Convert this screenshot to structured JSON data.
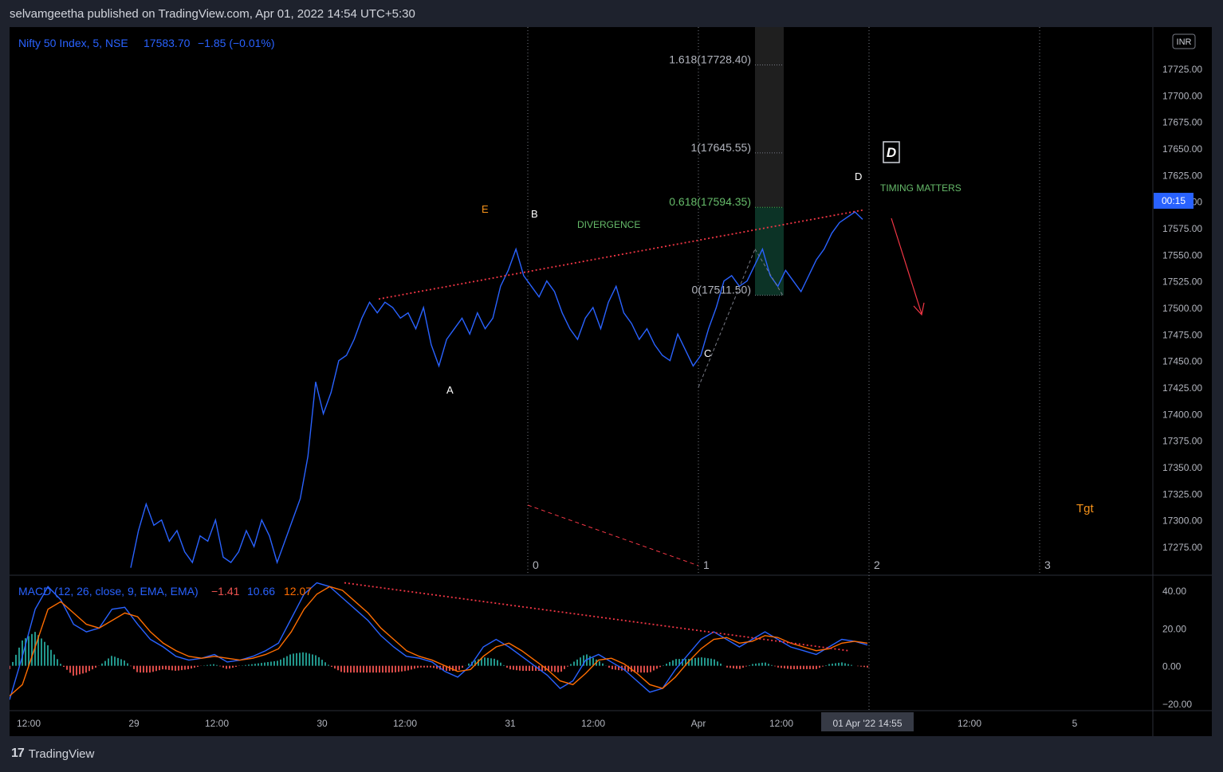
{
  "header": {
    "publish_line": "selvamgeetha published on TradingView.com, Apr 01, 2022 14:54 UTC+5:30"
  },
  "footer": {
    "brand": "TradingView",
    "logo_icon": "tradingview-logo-icon"
  },
  "colors": {
    "background": "#000000",
    "frame": "#1e222d",
    "price_line": "#2962ff",
    "accent_blue": "#2962ff",
    "macd_line": "#2962ff",
    "signal_line": "#ff6d00",
    "hist_pos": "#26a69a",
    "hist_neg": "#ef5350",
    "annotation_red": "#f23645",
    "fib_green": "#4caf50",
    "fib_green_text": "#66bb6a",
    "orange_text": "#f7931a"
  },
  "legend": {
    "symbol": "Nifty 50 Index, 5, NSE",
    "price": "17583.70",
    "change": "−1.85 (−0.01%)"
  },
  "price_axis": {
    "currency": "INR",
    "ticks": [
      "17725.00",
      "17700.00",
      "17675.00",
      "17650.00",
      "17625.00",
      "17600.00",
      "17575.00",
      "17550.00",
      "17525.00",
      "17500.00",
      "17475.00",
      "17450.00",
      "17425.00",
      "17400.00",
      "17375.00",
      "17350.00",
      "17325.00",
      "17300.00",
      "17275.00"
    ],
    "countdown": "00:15"
  },
  "macd_axis": {
    "ticks": [
      "40.00",
      "20.00",
      "0.00",
      "−20.00"
    ]
  },
  "time_axis": {
    "ticks": [
      "12:00",
      "29",
      "12:00",
      "30",
      "12:00",
      "31",
      "12:00",
      "Apr",
      "12:00",
      "12:00",
      "5"
    ],
    "crosshair_label": "01 Apr '22  14:55"
  },
  "macd_legend": {
    "title": "MACD (12, 26, close, 9, EMA, EMA)",
    "hist": "−1.41",
    "macd": "10.66",
    "signal": "12.07"
  },
  "annotations": {
    "wave_E": "E",
    "wave_B": "B",
    "wave_A": "A",
    "wave_C": "C",
    "wave_D": "D",
    "divergence": "DIVERGENCE",
    "timing": "TIMING MATTERS",
    "boxed_D": "D",
    "target": "Tgt",
    "cycle_labels": [
      "0",
      "1",
      "2",
      "3"
    ]
  },
  "fib_levels": [
    {
      "label": "1.618(17728.40)",
      "ratio": 1.618,
      "price": 17728.4
    },
    {
      "label": "1(17645.55)",
      "ratio": 1,
      "price": 17645.55
    },
    {
      "label": "0.618(17594.35)",
      "ratio": 0.618,
      "price": 17594.35
    },
    {
      "label": "0(17511.50)",
      "ratio": 0,
      "price": 17511.5
    }
  ],
  "chart_data": {
    "type": "line",
    "title": "Nifty 50 Index, 5, NSE",
    "x_categories": [
      "12:00",
      "29",
      "12:00",
      "30",
      "12:00",
      "31",
      "12:00",
      "Apr",
      "12:00",
      "01 Apr '22 14:55"
    ],
    "price_series": {
      "name": "Nifty 50 Index",
      "ylim": [
        17255,
        17735
      ],
      "values": [
        17255,
        17290,
        17315,
        17295,
        17300,
        17280,
        17290,
        17270,
        17260,
        17285,
        17280,
        17300,
        17265,
        17260,
        17270,
        17290,
        17275,
        17300,
        17285,
        17260,
        17280,
        17300,
        17320,
        17360,
        17430,
        17400,
        17420,
        17450,
        17455,
        17470,
        17490,
        17505,
        17495,
        17505,
        17500,
        17490,
        17495,
        17480,
        17500,
        17465,
        17445,
        17470,
        17480,
        17490,
        17475,
        17495,
        17480,
        17490,
        17520,
        17535,
        17555,
        17530,
        17520,
        17510,
        17525,
        17515,
        17495,
        17480,
        17470,
        17490,
        17500,
        17480,
        17505,
        17520,
        17495,
        17485,
        17470,
        17480,
        17465,
        17455,
        17450,
        17475,
        17460,
        17445,
        17455,
        17480,
        17500,
        17525,
        17530,
        17520,
        17525,
        17540,
        17555,
        17530,
        17520,
        17535,
        17525,
        17515,
        17530,
        17545,
        17555,
        17570,
        17580,
        17585,
        17590,
        17583
      ]
    },
    "macd": {
      "name": "MACD (12, 26, close, 9, EMA, EMA)",
      "ylim": [
        -25,
        45
      ],
      "macd_values": [
        -18,
        5,
        30,
        42,
        35,
        22,
        18,
        20,
        30,
        31,
        22,
        14,
        10,
        5,
        3,
        4,
        6,
        2,
        3,
        5,
        8,
        12,
        25,
        38,
        44,
        42,
        36,
        30,
        24,
        16,
        10,
        5,
        4,
        2,
        -3,
        -6,
        0,
        10,
        14,
        10,
        5,
        0,
        -5,
        -12,
        -8,
        3,
        6,
        2,
        -2,
        -8,
        -14,
        -12,
        -2,
        6,
        14,
        18,
        14,
        10,
        14,
        18,
        14,
        10,
        8,
        6,
        10,
        14,
        13,
        11
      ],
      "signal_values": [
        -16,
        -10,
        10,
        30,
        34,
        28,
        22,
        20,
        24,
        28,
        26,
        18,
        12,
        8,
        5,
        4,
        5,
        4,
        3,
        4,
        6,
        9,
        18,
        30,
        38,
        42,
        40,
        34,
        28,
        20,
        14,
        8,
        5,
        3,
        0,
        -3,
        -2,
        5,
        10,
        12,
        8,
        3,
        -2,
        -8,
        -10,
        -4,
        3,
        4,
        1,
        -4,
        -10,
        -12,
        -6,
        2,
        9,
        14,
        15,
        12,
        13,
        16,
        15,
        12,
        10,
        8,
        9,
        12,
        13,
        12
      ],
      "hist_range": [
        -8,
        14
      ]
    },
    "fib_retracement": [
      {
        "ratio": 0,
        "price": 17511.5
      },
      {
        "ratio": 0.618,
        "price": 17594.35
      },
      {
        "ratio": 1,
        "price": 17645.55
      },
      {
        "ratio": 1.618,
        "price": 17728.4
      }
    ],
    "wave_labels": [
      "E",
      "B",
      "A",
      "C",
      "D"
    ],
    "grid": false,
    "legend_position": "top-left"
  }
}
